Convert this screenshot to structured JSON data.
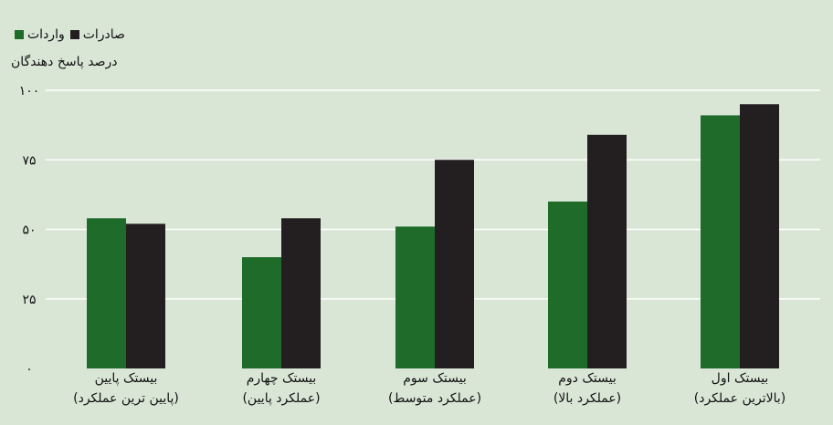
{
  "chart_data": {
    "type": "bar",
    "title": "",
    "xlabel": "",
    "ylabel": "درصد پاسخ دهندگان",
    "ylim": [
      0,
      100
    ],
    "yticks": [
      0,
      25,
      50,
      75,
      100
    ],
    "ytick_labels": [
      "۰",
      "۲۵",
      "۵۰",
      "۷۵",
      "۱۰۰"
    ],
    "grid": true,
    "legend_position": "top-left",
    "categories": [
      {
        "line1": "بیستک پایین",
        "line2": "(پایین ترین عملکرد)"
      },
      {
        "line1": "بیستک چهارم",
        "line2": "(عملکرد پایین)"
      },
      {
        "line1": "بیستک سوم",
        "line2": "(عملکرد متوسط)"
      },
      {
        "line1": "بیستک دوم",
        "line2": "(عملکرد بالا)"
      },
      {
        "line1": "بیستک اول",
        "line2": "(بالاترین عملکرد)"
      }
    ],
    "series": [
      {
        "name": "واردات",
        "color": "#1e6b2a",
        "values": [
          54,
          40,
          51,
          60,
          91
        ]
      },
      {
        "name": "صادرات",
        "color": "#231f20",
        "values": [
          52,
          54,
          75,
          84,
          95
        ]
      }
    ]
  }
}
